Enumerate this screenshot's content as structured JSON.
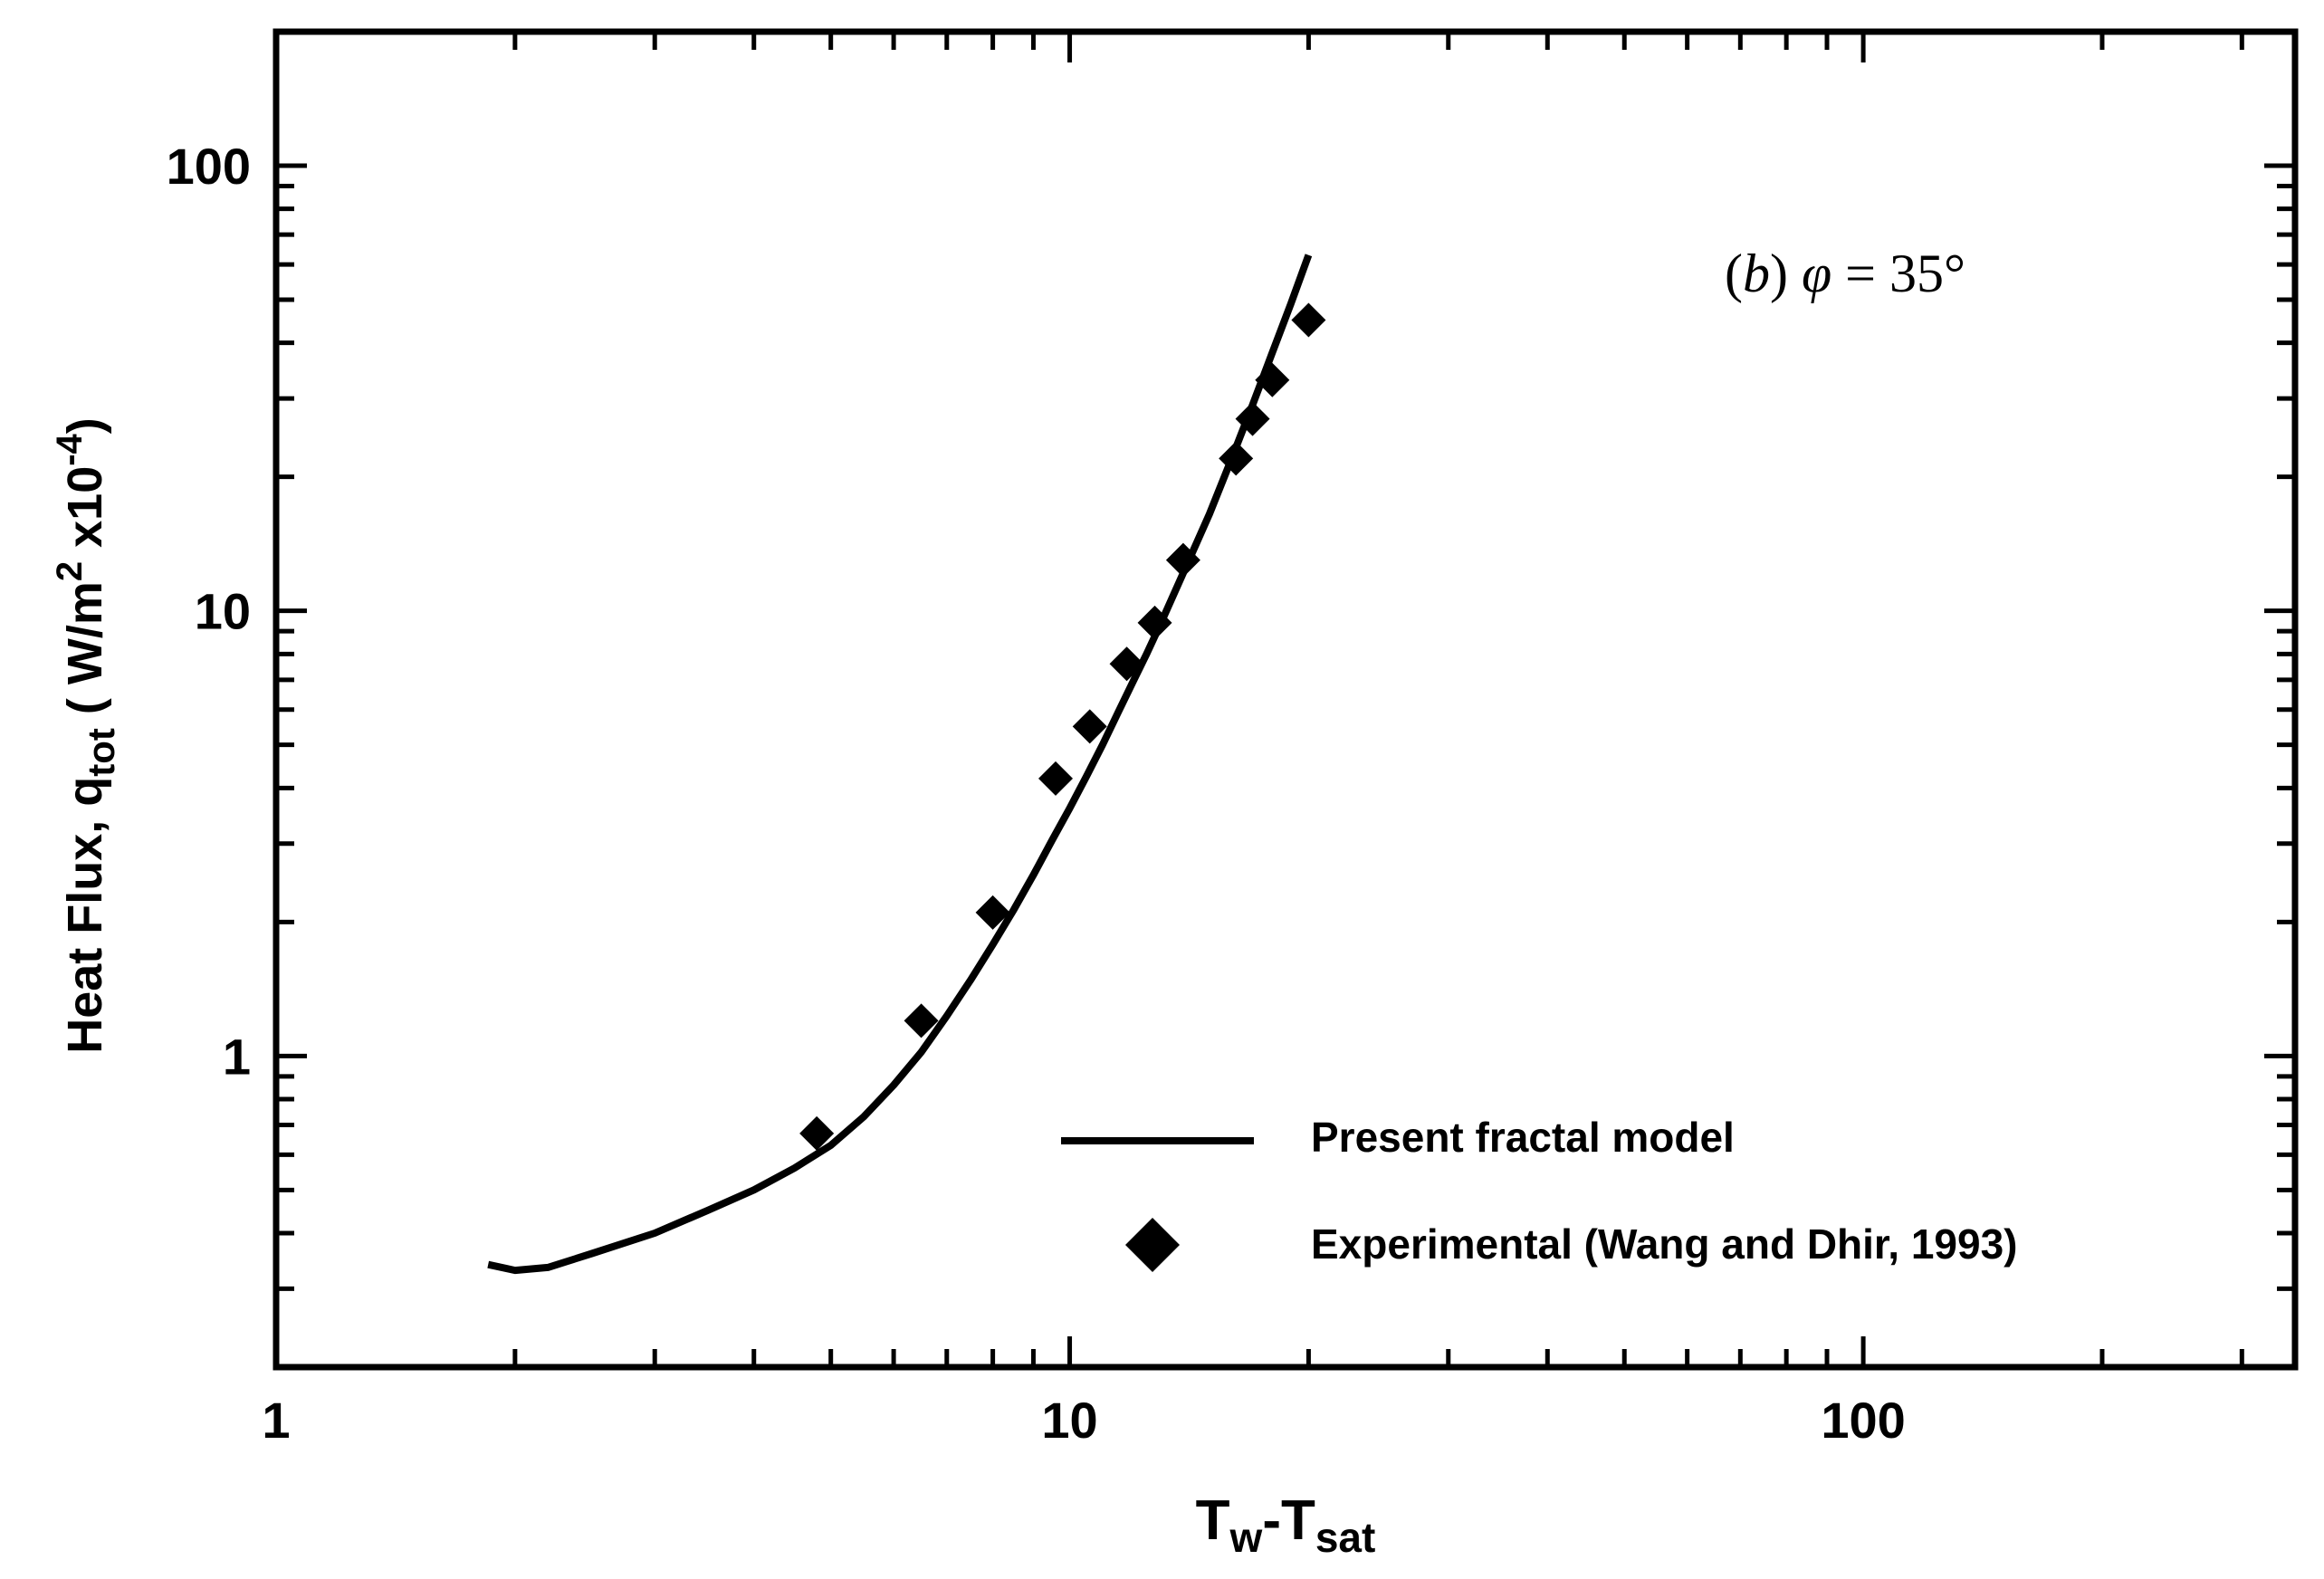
{
  "chart_data": {
    "type": "line",
    "xscale": "log",
    "yscale": "log",
    "xlim": [
      1,
      350
    ],
    "ylim": [
      0.2,
      200
    ],
    "xticks": [
      1,
      10,
      100
    ],
    "yticks": [
      1,
      10,
      100
    ],
    "xtick_labels": [
      "1",
      "10",
      "100"
    ],
    "ytick_labels": [
      "1",
      "10",
      "100"
    ],
    "xlabel": {
      "main": "T",
      "sub1": "w",
      "mid": "-T",
      "sub2": "sat"
    },
    "ylabel": {
      "main": "Heat Flux, q",
      "sub": "tot",
      "unit": " ( W/m",
      "sup1": "2",
      "mult": " x10",
      "sup2": "-4",
      "close": ")"
    },
    "annotation": {
      "open": "(",
      "letter": "b",
      "close": ") ",
      "symbol": "φ",
      "eq": " = 35°"
    },
    "legend": {
      "placement": "lower-right"
    },
    "series": [
      {
        "name": "Present fractal model",
        "kind": "line",
        "color": "#000000",
        "x": [
          1.85,
          2.0,
          2.2,
          2.5,
          3.0,
          3.5,
          4.0,
          4.5,
          5.0,
          5.5,
          6.0,
          6.5,
          7.0,
          7.5,
          8.0,
          8.5,
          9.0,
          9.5,
          10.0,
          10.5,
          11.0,
          11.5,
          12.0,
          12.5,
          13.0,
          14.0,
          15.0,
          16.0,
          17.0,
          18.0,
          19.0,
          20.0
        ],
        "y": [
          0.34,
          0.33,
          0.335,
          0.36,
          0.4,
          0.45,
          0.5,
          0.56,
          0.63,
          0.73,
          0.86,
          1.02,
          1.23,
          1.48,
          1.78,
          2.13,
          2.55,
          3.05,
          3.6,
          4.25,
          5.0,
          5.9,
          6.9,
          8.0,
          9.3,
          12.5,
          16.5,
          22.0,
          29.0,
          38.0,
          49.0,
          63.0
        ]
      },
      {
        "name": "Experimental (Wang and Dhir, 1993)",
        "kind": "scatter",
        "marker": "diamond",
        "color": "#000000",
        "x": [
          4.8,
          6.5,
          8.0,
          9.6,
          10.6,
          11.8,
          12.8,
          13.9,
          16.2,
          17.0,
          18.0,
          20.0
        ],
        "y": [
          0.67,
          1.2,
          2.1,
          4.2,
          5.5,
          7.6,
          9.4,
          13.0,
          22.0,
          27.0,
          33.0,
          45.0
        ]
      }
    ]
  }
}
